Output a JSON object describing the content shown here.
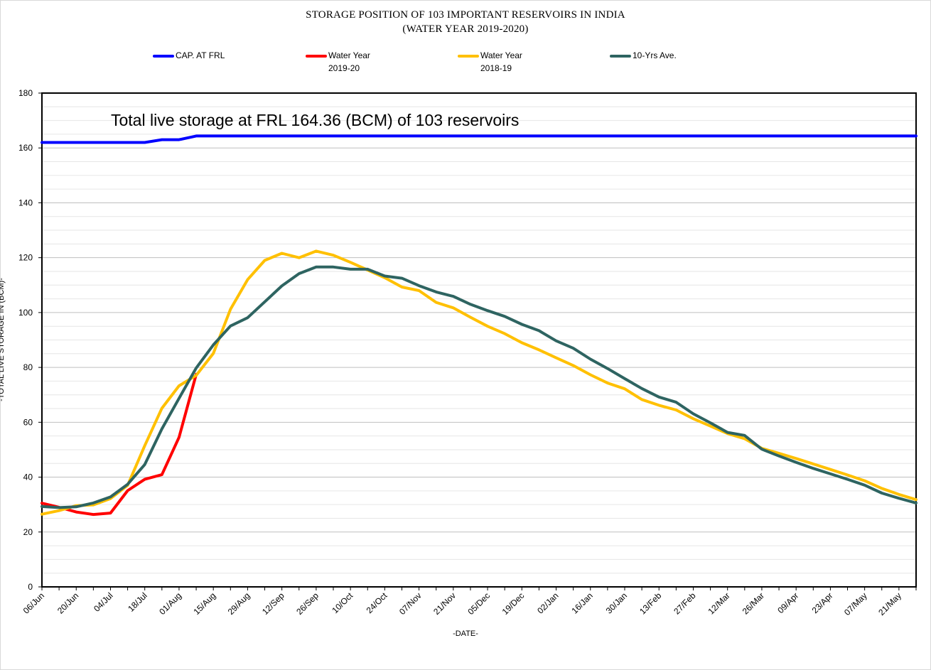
{
  "chart_data": {
    "type": "line",
    "title": "STORAGE POSITION OF 103 IMPORTANT RESERVOIRS IN INDIA",
    "subtitle": "(WATER YEAR 2019-2020)",
    "xlabel": "-DATE-",
    "ylabel": "-TOTAL LIVE STORAGE IN (BCM)-",
    "annotation": "Total live storage at FRL 164.36 (BCM) of 103 reservoirs",
    "ylim": [
      0,
      180
    ],
    "yticks": [
      0,
      20,
      40,
      60,
      80,
      100,
      120,
      140,
      160,
      180
    ],
    "grid": "horizontal",
    "legend_position": "top",
    "x_tick_labels": [
      "06/Jun",
      "20/Jun",
      "04/Jul",
      "18/Jul",
      "01/Aug",
      "15/Aug",
      "29/Aug",
      "12/Sep",
      "26/Sep",
      "10/Oct",
      "24/Oct",
      "07/Nov",
      "21/Nov",
      "05/Dec",
      "19/Dec",
      "02/Jan",
      "16/Jan",
      "30/Jan",
      "13/Feb",
      "27/Feb",
      "12/Mar",
      "26/Mar",
      "09/Apr",
      "23/Apr",
      "07/May",
      "21/May"
    ],
    "x_points": [
      "06/Jun",
      "13/Jun",
      "20/Jun",
      "27/Jun",
      "04/Jul",
      "11/Jul",
      "18/Jul",
      "25/Jul",
      "01/Aug",
      "08/Aug",
      "15/Aug",
      "22/Aug",
      "29/Aug",
      "05/Sep",
      "12/Sep",
      "19/Sep",
      "26/Sep",
      "03/Oct",
      "10/Oct",
      "17/Oct",
      "24/Oct",
      "31/Oct",
      "07/Nov",
      "14/Nov",
      "21/Nov",
      "28/Nov",
      "05/Dec",
      "12/Dec",
      "19/Dec",
      "26/Dec",
      "02/Jan",
      "09/Jan",
      "16/Jan",
      "23/Jan",
      "30/Jan",
      "06/Feb",
      "13/Feb",
      "20/Feb",
      "27/Feb",
      "05/Mar",
      "12/Mar",
      "19/Mar",
      "26/Mar",
      "02/Apr",
      "09/Apr",
      "16/Apr",
      "23/Apr",
      "30/Apr",
      "07/May",
      "14/May",
      "21/May",
      "28/May"
    ],
    "series": [
      {
        "name": "CAP. AT FRL",
        "color": "#0000ff",
        "values": [
          162,
          162,
          162,
          162,
          162,
          162,
          162,
          163,
          163,
          164.36,
          164.36,
          164.36,
          164.36,
          164.36,
          164.36,
          164.36,
          164.36,
          164.36,
          164.36,
          164.36,
          164.36,
          164.36,
          164.36,
          164.36,
          164.36,
          164.36,
          164.36,
          164.36,
          164.36,
          164.36,
          164.36,
          164.36,
          164.36,
          164.36,
          164.36,
          164.36,
          164.36,
          164.36,
          164.36,
          164.36,
          164.36,
          164.36,
          164.36,
          164.36,
          164.36,
          164.36,
          164.36,
          164.36,
          164.36,
          164.36,
          164.36,
          164.36
        ]
      },
      {
        "name": "Water Year 2019-20",
        "color": "#ff0000",
        "values": [
          30.5,
          29,
          27.3,
          26.4,
          26.9,
          35.1,
          39.2,
          40.9,
          54.5,
          77.5
        ]
      },
      {
        "name": "Water Year 2018-19",
        "color": "#ffc000",
        "values": [
          26.5,
          27.8,
          29.6,
          29.9,
          32.2,
          37,
          51.5,
          65.1,
          73.3,
          77.1,
          85.1,
          101.2,
          112,
          119,
          121.6,
          120,
          122.4,
          120.9,
          118.3,
          115.5,
          112.7,
          109.3,
          108,
          103.7,
          101.7,
          98.3,
          95,
          92.3,
          89,
          86.4,
          83.5,
          80.7,
          77.3,
          74.3,
          72.2,
          68.3,
          66.2,
          64.5,
          61.3,
          58.6,
          55.9,
          54,
          50.5,
          48.7,
          46.8,
          44.8,
          42.8,
          40.8,
          38.7,
          35.9,
          33.7,
          31.8
        ]
      },
      {
        "name": "10-Yrs Ave.",
        "color": "#2e6461",
        "values": [
          29.3,
          28.9,
          29.2,
          30.6,
          32.8,
          37.4,
          44.6,
          57.6,
          68.7,
          79.8,
          88.2,
          95.1,
          98.1,
          103.9,
          109.7,
          114.2,
          116.6,
          116.6,
          115.8,
          115.8,
          113.3,
          112.5,
          109.8,
          107.5,
          105.9,
          103,
          100.7,
          98.6,
          95.7,
          93.4,
          89.7,
          87,
          83,
          79.6,
          75.9,
          72.3,
          69.2,
          67.3,
          63.1,
          59.8,
          56.3,
          55.2,
          50.2,
          47.7,
          45.4,
          43.2,
          41.2,
          39.2,
          37.1,
          34.2,
          32.3,
          30.6
        ]
      }
    ]
  },
  "legend": [
    {
      "line1": "CAP. AT FRL",
      "line2": "",
      "color": "#0000ff"
    },
    {
      "line1": "Water Year",
      "line2": "2019-20",
      "color": "#ff0000"
    },
    {
      "line1": "Water Year",
      "line2": "2018-19",
      "color": "#ffc000"
    },
    {
      "line1": "10-Yrs Ave.",
      "line2": "",
      "color": "#2e6461"
    }
  ]
}
